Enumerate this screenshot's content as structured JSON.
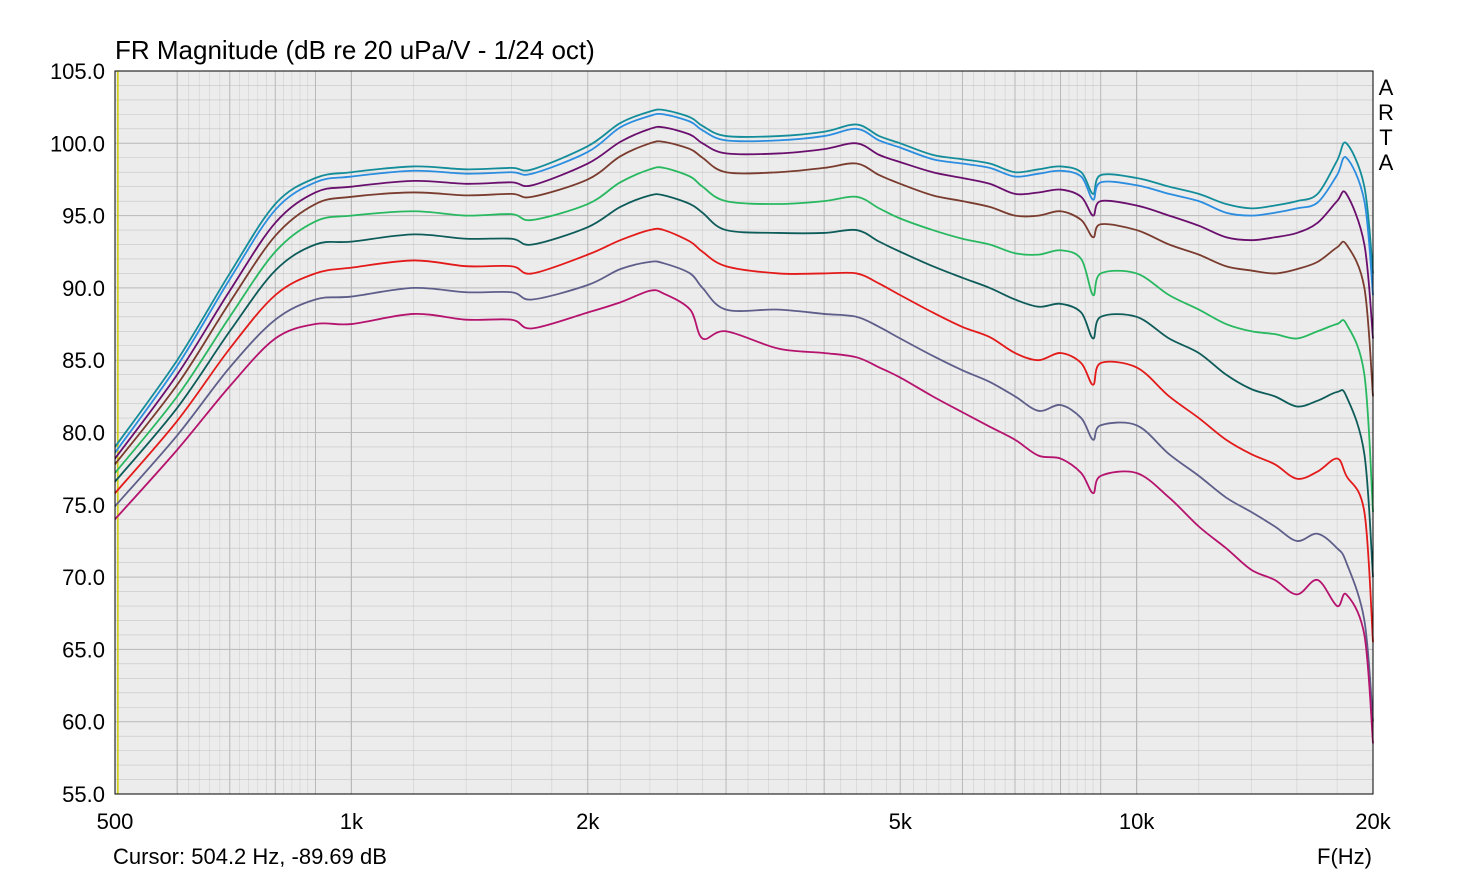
{
  "chart_data": {
    "type": "line",
    "title": "FR Magnitude (dB re 20 uPa/V - 1/24 oct)",
    "xlabel": "F(Hz)",
    "cursor_readout": "Cursor: 504.2 Hz, -89.69 dB",
    "side_label": [
      "A",
      "R",
      "T",
      "A"
    ],
    "x_scale": "log",
    "xlim": [
      500,
      20000
    ],
    "ylim": [
      55,
      105
    ],
    "grid": true,
    "legend": "none",
    "x_ticks": [
      {
        "value": 500,
        "label": "500"
      },
      {
        "value": 1000,
        "label": "1k"
      },
      {
        "value": 2000,
        "label": "2k"
      },
      {
        "value": 5000,
        "label": "5k"
      },
      {
        "value": 10000,
        "label": "10k"
      },
      {
        "value": 20000,
        "label": "20k"
      }
    ],
    "y_ticks": [
      {
        "value": 105,
        "label": "105.0"
      },
      {
        "value": 100,
        "label": "100.0"
      },
      {
        "value": 95,
        "label": "95.0"
      },
      {
        "value": 90,
        "label": "90.0"
      },
      {
        "value": 85,
        "label": "85.0"
      },
      {
        "value": 80,
        "label": "80.0"
      },
      {
        "value": 75,
        "label": "75.0"
      },
      {
        "value": 70,
        "label": "70.0"
      },
      {
        "value": 65,
        "label": "65.0"
      },
      {
        "value": 60,
        "label": "60.0"
      },
      {
        "value": 55,
        "label": "55.0"
      }
    ],
    "colors": {
      "plot_background": "#ececec",
      "grid": "#b8b8b8",
      "cursor_line": "#cccc00"
    },
    "cursor_x": 504.2,
    "x": [
      500,
      600,
      700,
      800,
      900,
      1000,
      1200,
      1400,
      1600,
      1700,
      2000,
      2200,
      2400,
      2500,
      2700,
      2800,
      3000,
      3500,
      4000,
      4400,
      4700,
      5000,
      5500,
      6000,
      6500,
      7000,
      7500,
      8000,
      8500,
      8800,
      9000,
      10000,
      11000,
      12000,
      13000,
      14000,
      15000,
      16000,
      17000,
      18000,
      18500,
      19500,
      20000
    ],
    "series": [
      {
        "color": "#138d9a",
        "values": [
          79.0,
          85.0,
          91.0,
          95.8,
          97.6,
          98.0,
          98.4,
          98.2,
          98.3,
          98.2,
          99.8,
          101.4,
          102.2,
          102.3,
          101.8,
          101.2,
          100.5,
          100.5,
          100.8,
          101.3,
          100.5,
          100.0,
          99.2,
          98.9,
          98.6,
          98.0,
          98.2,
          98.4,
          98.0,
          96.5,
          97.8,
          97.6,
          97.0,
          96.5,
          95.8,
          95.5,
          95.7,
          96.0,
          96.5,
          98.8,
          100.0,
          97.0,
          91.0
        ]
      },
      {
        "color": "#2a8de0",
        "values": [
          78.6,
          84.6,
          90.6,
          95.4,
          97.3,
          97.7,
          98.1,
          97.9,
          98.0,
          97.9,
          99.4,
          101.1,
          101.9,
          102.0,
          101.5,
          100.9,
          100.2,
          100.2,
          100.5,
          101.0,
          100.2,
          99.7,
          98.9,
          98.6,
          98.3,
          97.7,
          97.9,
          98.1,
          97.7,
          96.1,
          97.3,
          97.1,
          96.5,
          96.0,
          95.2,
          95.0,
          95.2,
          95.5,
          95.9,
          97.8,
          99.0,
          96.0,
          89.5
        ]
      },
      {
        "color": "#6a0f6e",
        "values": [
          78.2,
          84.0,
          89.8,
          94.5,
          96.6,
          97.0,
          97.4,
          97.2,
          97.3,
          97.1,
          98.6,
          100.1,
          101.0,
          101.1,
          100.6,
          100.0,
          99.3,
          99.3,
          99.6,
          100.0,
          99.2,
          98.7,
          98.0,
          97.6,
          97.2,
          96.5,
          96.6,
          96.8,
          96.3,
          95.0,
          96.0,
          95.7,
          95.0,
          94.3,
          93.5,
          93.3,
          93.5,
          93.8,
          94.5,
          96.0,
          96.5,
          93.0,
          86.5
        ]
      },
      {
        "color": "#7a3c2e",
        "values": [
          77.8,
          83.3,
          89.0,
          93.6,
          95.8,
          96.3,
          96.6,
          96.4,
          96.5,
          96.3,
          97.5,
          99.1,
          100.0,
          100.1,
          99.6,
          99.0,
          98.0,
          98.0,
          98.3,
          98.6,
          97.8,
          97.2,
          96.4,
          96.0,
          95.6,
          95.0,
          95.0,
          95.3,
          94.7,
          93.5,
          94.4,
          94.0,
          93.0,
          92.3,
          91.5,
          91.2,
          91.0,
          91.3,
          91.8,
          92.8,
          93.0,
          90.0,
          82.5
        ]
      },
      {
        "color": "#28b860",
        "values": [
          77.2,
          82.5,
          88.0,
          92.5,
          94.6,
          95.0,
          95.3,
          95.0,
          95.1,
          94.7,
          95.8,
          97.3,
          98.2,
          98.3,
          97.7,
          97.0,
          96.0,
          95.8,
          96.0,
          96.3,
          95.5,
          94.8,
          94.0,
          93.4,
          93.0,
          92.4,
          92.3,
          92.6,
          92.0,
          89.5,
          91.0,
          91.0,
          89.5,
          88.5,
          87.5,
          87.0,
          86.8,
          86.5,
          87.0,
          87.5,
          87.5,
          84.0,
          74.5
        ]
      },
      {
        "color": "#0e5c5a",
        "values": [
          76.6,
          81.7,
          87.0,
          91.2,
          93.0,
          93.2,
          93.7,
          93.4,
          93.4,
          93.0,
          94.2,
          95.6,
          96.4,
          96.4,
          95.8,
          95.2,
          94.0,
          93.8,
          93.8,
          94.0,
          93.2,
          92.5,
          91.5,
          90.7,
          90.0,
          89.2,
          88.7,
          88.9,
          88.3,
          86.5,
          88.0,
          88.0,
          86.5,
          85.5,
          84.0,
          83.0,
          82.5,
          81.8,
          82.2,
          82.8,
          82.5,
          78.5,
          70.0
        ]
      },
      {
        "color": "#e31a1a",
        "values": [
          75.8,
          80.8,
          85.8,
          89.5,
          91.0,
          91.4,
          91.9,
          91.5,
          91.5,
          91.0,
          92.3,
          93.3,
          94.0,
          94.0,
          93.2,
          92.5,
          91.5,
          91.0,
          91.0,
          91.0,
          90.3,
          89.5,
          88.3,
          87.3,
          86.6,
          85.5,
          85.0,
          85.5,
          84.8,
          83.3,
          84.8,
          84.5,
          82.5,
          81.0,
          79.5,
          78.5,
          77.8,
          76.8,
          77.3,
          78.2,
          77.0,
          74.5,
          65.5
        ]
      },
      {
        "color": "#5e5e8a",
        "values": [
          74.9,
          79.8,
          84.5,
          87.8,
          89.2,
          89.4,
          90.0,
          89.7,
          89.7,
          89.2,
          90.2,
          91.3,
          91.8,
          91.7,
          91.0,
          90.0,
          88.5,
          88.5,
          88.2,
          88.0,
          87.3,
          86.5,
          85.3,
          84.3,
          83.5,
          82.5,
          81.5,
          81.9,
          81.0,
          79.5,
          80.5,
          80.5,
          78.5,
          77.0,
          75.5,
          74.5,
          73.5,
          72.5,
          73.0,
          72.0,
          71.0,
          67.0,
          60.0
        ]
      },
      {
        "color": "#b5136e",
        "values": [
          74.0,
          78.8,
          83.2,
          86.5,
          87.5,
          87.5,
          88.2,
          87.8,
          87.8,
          87.2,
          88.3,
          89.0,
          89.8,
          89.6,
          88.5,
          86.5,
          87.0,
          85.8,
          85.5,
          85.2,
          84.5,
          83.8,
          82.5,
          81.4,
          80.4,
          79.5,
          78.4,
          78.2,
          77.2,
          75.8,
          77.0,
          77.2,
          75.5,
          73.5,
          72.0,
          70.5,
          69.8,
          68.8,
          69.8,
          68.0,
          68.8,
          66.0,
          58.5
        ]
      }
    ]
  }
}
